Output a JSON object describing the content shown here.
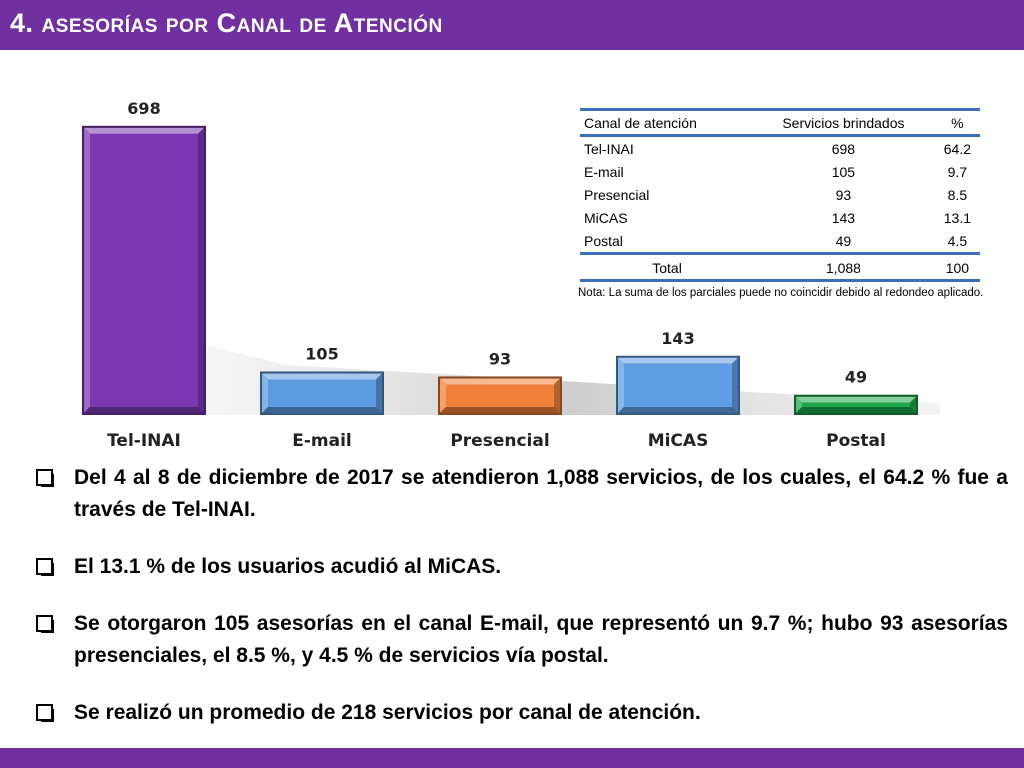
{
  "header": {
    "title": "4. asesorías por Canal de Atención"
  },
  "colors": {
    "header_bar": "#7030a0",
    "table_rule": "#3b6fb6"
  },
  "chart_data": {
    "type": "bar",
    "categories": [
      "Tel-INAI",
      "E-mail",
      "Presencial",
      "MiCAS",
      "Postal"
    ],
    "values": [
      698,
      105,
      93,
      143,
      49
    ],
    "data_labels": [
      "698",
      "105",
      "93",
      "143",
      "49"
    ],
    "colors": [
      "#7a37b0",
      "#5d9be0",
      "#f0813a",
      "#5f9ee4",
      "#1fa84a"
    ],
    "title": "",
    "xlabel": "",
    "ylabel": "",
    "ylim": [
      0,
      700
    ],
    "grid": false,
    "legend": "none"
  },
  "table": {
    "headers": [
      "Canal de atención",
      "Servicios brindados",
      "%"
    ],
    "rows": [
      [
        "Tel-INAI",
        "698",
        "64.2"
      ],
      [
        "E-mail",
        "105",
        "9.7"
      ],
      [
        "Presencial",
        "93",
        "8.5"
      ],
      [
        "MiCAS",
        "143",
        "13.1"
      ],
      [
        "Postal",
        "49",
        "4.5"
      ]
    ],
    "total": [
      "Total",
      "1,088",
      "100"
    ],
    "note": "Nota: La suma de los parciales puede no coincidir debido al redondeo aplicado."
  },
  "bullets": [
    "Del 4 al 8 de diciembre de 2017 se atendieron 1,088 servicios, de los cuales, el 64.2 % fue a través de Tel-INAI.",
    "El 13.1 % de los usuarios acudió al MiCAS.",
    "Se otorgaron 105 asesorías en el canal E-mail, que representó un 9.7 %; hubo 93 asesorías presenciales, el 8.5 %, y 4.5 % de servicios vía postal.",
    "Se realizó un promedio de 218 servicios por canal de atención."
  ]
}
